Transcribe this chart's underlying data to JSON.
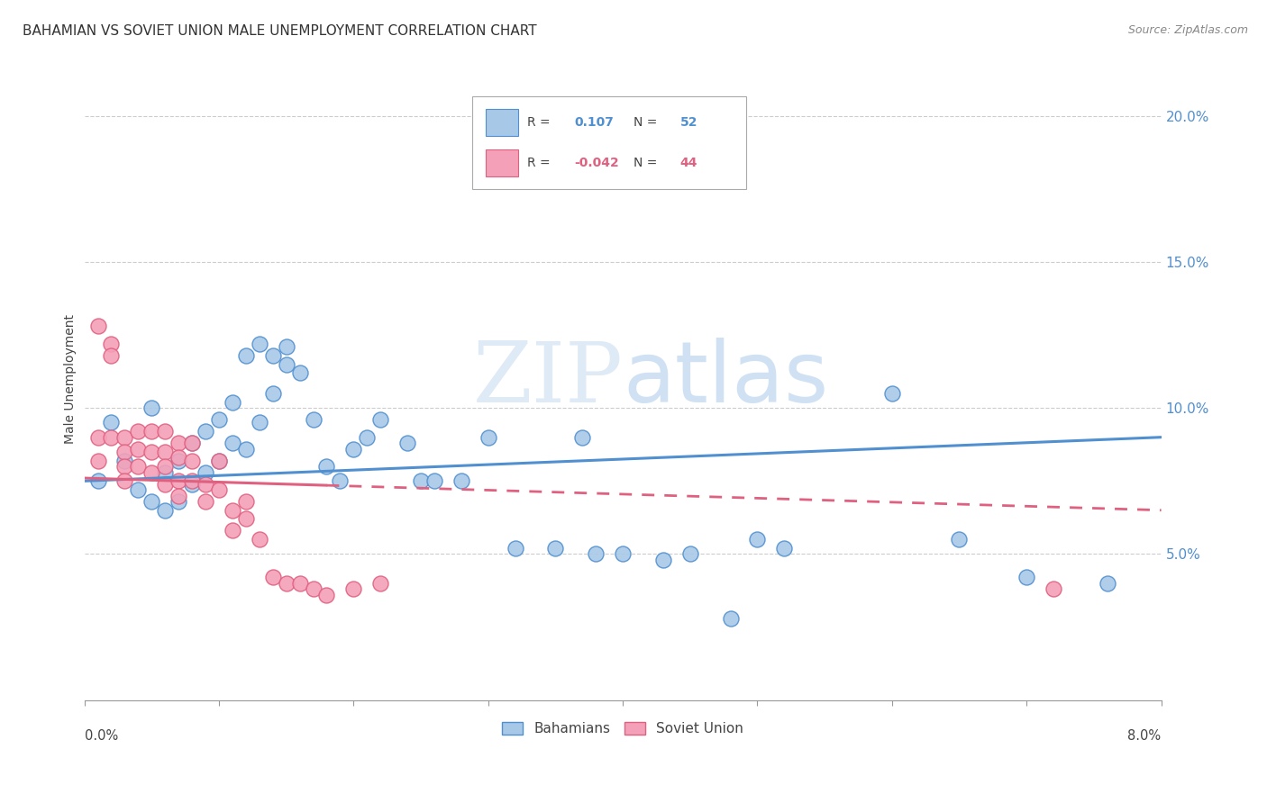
{
  "title": "BAHAMIAN VS SOVIET UNION MALE UNEMPLOYMENT CORRELATION CHART",
  "source": "Source: ZipAtlas.com",
  "ylabel": "Male Unemployment",
  "legend_blue_r": "0.107",
  "legend_blue_n": "52",
  "legend_pink_r": "-0.042",
  "legend_pink_n": "44",
  "legend_blue_label": "Bahamians",
  "legend_pink_label": "Soviet Union",
  "watermark_zip": "ZIP",
  "watermark_atlas": "atlas",
  "blue_color": "#A8C8E8",
  "pink_color": "#F4A0B8",
  "blue_edge_color": "#5090D0",
  "pink_edge_color": "#E06080",
  "blue_line_color": "#5090D0",
  "pink_line_color": "#E06080",
  "xlim": [
    0.0,
    0.08
  ],
  "ylim": [
    0.0,
    0.22
  ],
  "yticks": [
    0.05,
    0.1,
    0.15,
    0.2
  ],
  "ytick_labels": [
    "5.0%",
    "10.0%",
    "15.0%",
    "20.0%"
  ],
  "blue_scatter_x": [
    0.001,
    0.002,
    0.003,
    0.004,
    0.005,
    0.005,
    0.006,
    0.006,
    0.007,
    0.007,
    0.008,
    0.008,
    0.009,
    0.009,
    0.01,
    0.01,
    0.011,
    0.011,
    0.012,
    0.012,
    0.013,
    0.013,
    0.014,
    0.014,
    0.015,
    0.015,
    0.016,
    0.017,
    0.018,
    0.019,
    0.02,
    0.021,
    0.022,
    0.024,
    0.025,
    0.026,
    0.028,
    0.03,
    0.032,
    0.035,
    0.037,
    0.038,
    0.04,
    0.043,
    0.045,
    0.048,
    0.05,
    0.052,
    0.06,
    0.065,
    0.07,
    0.076
  ],
  "blue_scatter_y": [
    0.075,
    0.095,
    0.082,
    0.072,
    0.1,
    0.068,
    0.078,
    0.065,
    0.082,
    0.068,
    0.088,
    0.074,
    0.092,
    0.078,
    0.096,
    0.082,
    0.102,
    0.088,
    0.118,
    0.086,
    0.122,
    0.095,
    0.118,
    0.105,
    0.121,
    0.115,
    0.112,
    0.096,
    0.08,
    0.075,
    0.086,
    0.09,
    0.096,
    0.088,
    0.075,
    0.075,
    0.075,
    0.09,
    0.052,
    0.052,
    0.09,
    0.05,
    0.05,
    0.048,
    0.05,
    0.028,
    0.055,
    0.052,
    0.105,
    0.055,
    0.042,
    0.04
  ],
  "pink_scatter_x": [
    0.001,
    0.001,
    0.001,
    0.002,
    0.002,
    0.002,
    0.003,
    0.003,
    0.003,
    0.003,
    0.004,
    0.004,
    0.004,
    0.005,
    0.005,
    0.005,
    0.006,
    0.006,
    0.006,
    0.006,
    0.007,
    0.007,
    0.007,
    0.007,
    0.008,
    0.008,
    0.008,
    0.009,
    0.009,
    0.01,
    0.01,
    0.011,
    0.011,
    0.012,
    0.012,
    0.013,
    0.014,
    0.015,
    0.016,
    0.017,
    0.018,
    0.02,
    0.022,
    0.072
  ],
  "pink_scatter_y": [
    0.128,
    0.09,
    0.082,
    0.122,
    0.118,
    0.09,
    0.09,
    0.085,
    0.08,
    0.075,
    0.092,
    0.086,
    0.08,
    0.092,
    0.085,
    0.078,
    0.092,
    0.085,
    0.08,
    0.074,
    0.088,
    0.083,
    0.075,
    0.07,
    0.088,
    0.082,
    0.075,
    0.074,
    0.068,
    0.082,
    0.072,
    0.065,
    0.058,
    0.068,
    0.062,
    0.055,
    0.042,
    0.04,
    0.04,
    0.038,
    0.036,
    0.038,
    0.04,
    0.038
  ],
  "blue_trendline_x": [
    0.0,
    0.08
  ],
  "blue_trendline_y": [
    0.075,
    0.09
  ],
  "pink_trendline_x": [
    0.0,
    0.08
  ],
  "pink_trendline_y": [
    0.076,
    0.065
  ]
}
